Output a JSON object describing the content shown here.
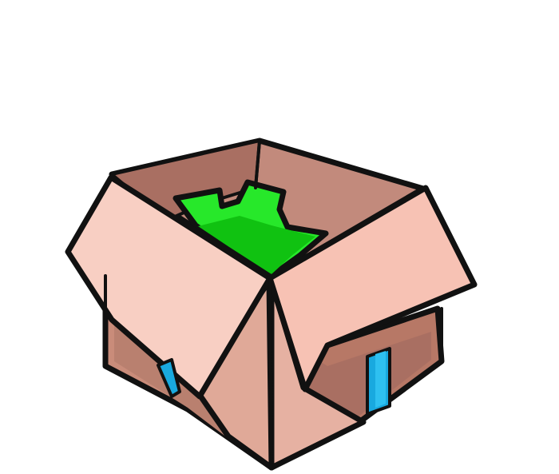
{
  "image": {
    "subject": "open-cardboard-box-clipart",
    "colors": {
      "background": "#ffffff",
      "outline": "#111111",
      "box_front_left": "#c98c7a",
      "box_front_left_shadow": "#a96f62",
      "box_front_right": "#b77866",
      "box_inner_back": "#c28a7c",
      "box_inner_side": "#a96f62",
      "flap_left": "#f8cfc3",
      "flap_right": "#f7c2b4",
      "flap_front_left": "#e0a998",
      "flap_front_right": "#e6b1a2",
      "contents_green": "#27e82a",
      "contents_green_dark": "#10c211",
      "tape_blue": "#19a9df",
      "tape_blue_light": "#2ec0f0"
    },
    "icons": {
      "box": "cardboard-box-icon",
      "contents": "green-contents-icon",
      "tape": "blue-tape-icon"
    }
  }
}
